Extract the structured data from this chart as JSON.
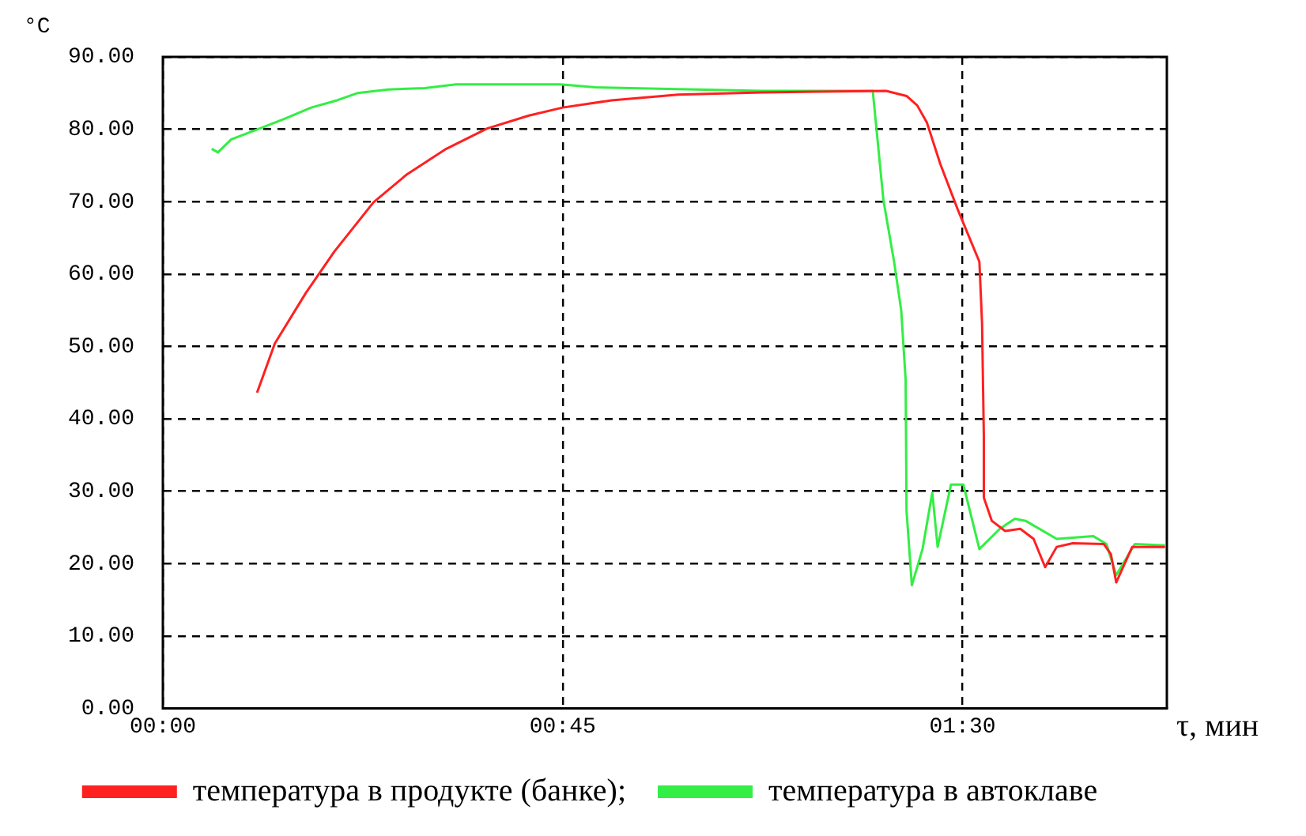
{
  "chart_data": {
    "type": "line",
    "xlabel": "τ, мин",
    "ylabel": "°C",
    "xlim": [
      0,
      113
    ],
    "xticks": [
      {
        "value": 0,
        "label": "00:00"
      },
      {
        "value": 45,
        "label": "00:45"
      },
      {
        "value": 90,
        "label": "01:30"
      }
    ],
    "ylim": [
      0,
      90
    ],
    "yticks": [
      {
        "value": 0,
        "label": "0.00"
      },
      {
        "value": 10,
        "label": "10.00"
      },
      {
        "value": 20,
        "label": "20.00"
      },
      {
        "value": 30,
        "label": "30.00"
      },
      {
        "value": 40,
        "label": "40.00"
      },
      {
        "value": 50,
        "label": "50.00"
      },
      {
        "value": 60,
        "label": "60.00"
      },
      {
        "value": 70,
        "label": "70.00"
      },
      {
        "value": 80,
        "label": "80.00"
      },
      {
        "value": 90,
        "label": "90.00"
      }
    ],
    "grid": true,
    "legend": "bottom",
    "marker": "none",
    "line_style": "solid",
    "series": [
      {
        "name": "температура в продукте (банке);",
        "color": "#ff2020",
        "x": [
          10.6,
          12.6,
          16.1,
          19.3,
          23.7,
          27.5,
          31.9,
          36.5,
          41.2,
          45,
          50.5,
          58,
          67.4,
          81.4,
          83.7,
          84.9,
          86,
          87.5,
          89.5,
          91.9,
          92.2,
          92.4,
          92.4,
          93.3,
          94.8,
          96.5,
          98,
          99.3,
          100.6,
          102.4,
          105.9,
          106.7,
          107.3,
          109.1,
          112.8
        ],
        "values": [
          43.6,
          50.4,
          57.4,
          63.1,
          69.9,
          73.8,
          77.3,
          80.1,
          81.9,
          83,
          84,
          84.8,
          85.1,
          85.3,
          84.6,
          83.3,
          80.9,
          75.2,
          68.8,
          61.7,
          53.2,
          37.6,
          29.1,
          25.9,
          24.5,
          24.8,
          23.4,
          19.5,
          22.3,
          22.8,
          22.7,
          21.3,
          17.4,
          22.3,
          22.3
        ]
      },
      {
        "name": "температура в автоклаве",
        "color": "#33ee44",
        "x": [
          5.5,
          6.2,
          7.7,
          10.9,
          13.8,
          16.7,
          19.6,
          21.9,
          25.4,
          29.5,
          33,
          44.7,
          48.7,
          67.4,
          79.9,
          81.1,
          82.3,
          83.1,
          83.6,
          83.7,
          84.3,
          85.5,
          86.6,
          87.2,
          88.7,
          90.1,
          91.9,
          94.2,
          95.9,
          97.1,
          100.6,
          104.7,
          106.2,
          107.3,
          109.4,
          112.8
        ],
        "values": [
          77.3,
          76.8,
          78.6,
          80.1,
          81.5,
          83,
          84,
          85,
          85.5,
          85.7,
          86.2,
          86.2,
          85.8,
          85.3,
          85.3,
          70.2,
          61.7,
          55,
          45.4,
          27.3,
          17,
          22,
          29.8,
          22.3,
          30.9,
          30.9,
          22,
          24.8,
          26.2,
          25.9,
          23.4,
          23.8,
          22.7,
          18.4,
          22.7,
          22.5
        ]
      }
    ]
  }
}
